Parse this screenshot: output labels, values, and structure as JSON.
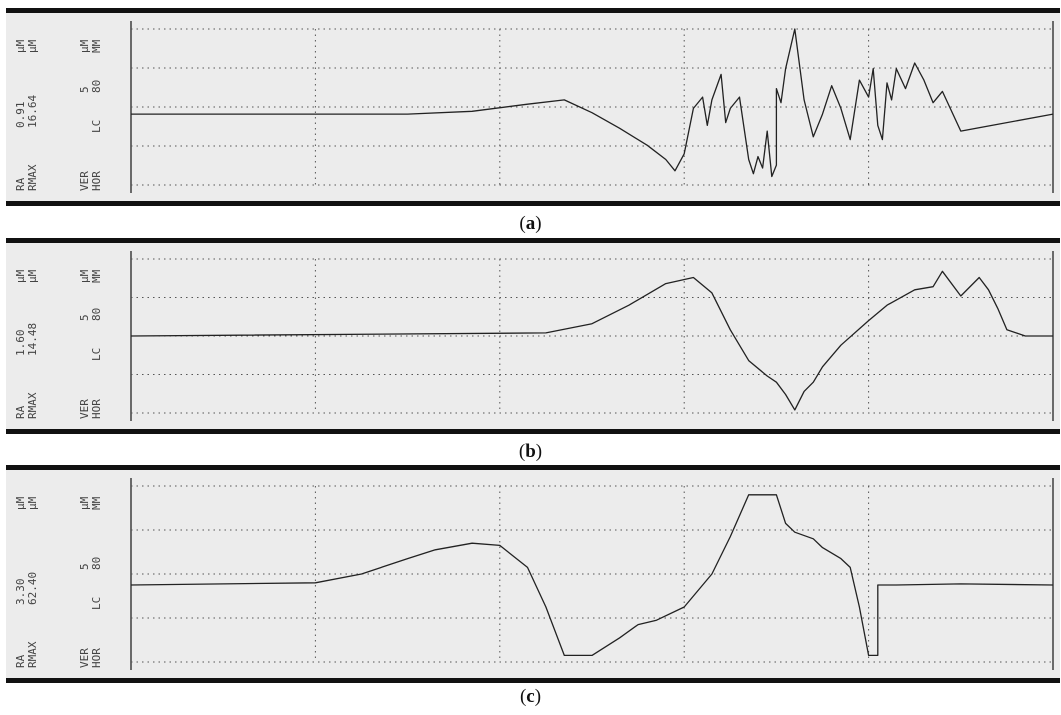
{
  "chart_data": [
    {
      "type": "line",
      "panel": "(a)",
      "labels": {
        "ra": "RA",
        "rmax": "RMAX",
        "ra_value": "0.91",
        "rmax_value": "16.64",
        "unit_a": "μM",
        "unit_b": "μM",
        "ver": "VER",
        "hor": "HOR",
        "ver_value": "5",
        "hor_value": "80",
        "lc": "LC",
        "unit_c": "μM",
        "unit_d": "MM"
      },
      "x": [
        0,
        0.3,
        0.37,
        0.43,
        0.47,
        0.5,
        0.53,
        0.56,
        0.58,
        0.59,
        0.6,
        0.61,
        0.62,
        0.625,
        0.63,
        0.64,
        0.645,
        0.65,
        0.66,
        0.67,
        0.675,
        0.68,
        0.685,
        0.69,
        0.695,
        0.7,
        0.7,
        0.705,
        0.71,
        0.72,
        0.73,
        0.74,
        0.75,
        0.76,
        0.77,
        0.78,
        0.79,
        0.8,
        0.805,
        0.81,
        0.815,
        0.82,
        0.825,
        0.83,
        0.84,
        0.85,
        0.86,
        0.87,
        0.88,
        0.9,
        1
      ],
      "y": [
        0,
        0,
        0.1,
        0.35,
        0.5,
        0.05,
        -0.5,
        -1.1,
        -1.6,
        -2,
        -1.4,
        0.2,
        0.6,
        -0.4,
        0.5,
        1.4,
        -0.3,
        0.2,
        0.6,
        -1.6,
        -2.1,
        -1.5,
        -1.9,
        -0.6,
        -2.2,
        -1.8,
        0.9,
        0.4,
        1.6,
        3,
        0.5,
        -0.8,
        0,
        1,
        0.2,
        -0.9,
        1.2,
        0.6,
        1.6,
        -0.4,
        -0.9,
        1.1,
        0.5,
        1.6,
        0.9,
        1.8,
        1.2,
        0.4,
        0.8,
        -0.6,
        0
      ],
      "x_gridlines": 4,
      "y_gridlines": 4,
      "ylim": [
        -2.5,
        3
      ]
    },
    {
      "type": "line",
      "panel": "(b)",
      "labels": {
        "ra": "RA",
        "rmax": "RMAX",
        "ra_value": "1.60",
        "rmax_value": "14.48",
        "unit_a": "μM",
        "unit_b": "μM",
        "ver": "VER",
        "hor": "HOR",
        "ver_value": "5",
        "hor_value": "80",
        "lc": "LC",
        "unit_c": "μM",
        "unit_d": "MM"
      },
      "x": [
        0,
        0.45,
        0.5,
        0.54,
        0.58,
        0.61,
        0.63,
        0.65,
        0.67,
        0.69,
        0.7,
        0.71,
        0.72,
        0.73,
        0.74,
        0.75,
        0.77,
        0.8,
        0.82,
        0.85,
        0.87,
        0.88,
        0.9,
        0.92,
        0.93,
        0.94,
        0.95,
        0.97,
        1
      ],
      "y": [
        0,
        0.1,
        0.4,
        1,
        1.7,
        1.9,
        1.4,
        0.2,
        -0.8,
        -1.3,
        -1.5,
        -1.9,
        -2.4,
        -1.8,
        -1.5,
        -1,
        -0.3,
        0.5,
        1,
        1.5,
        1.6,
        2.1,
        1.3,
        1.9,
        1.5,
        0.9,
        0.2,
        0,
        0
      ],
      "x_gridlines": 4,
      "y_gridlines": 4,
      "ylim": [
        -2.5,
        2.5
      ]
    },
    {
      "type": "line",
      "panel": "(c)",
      "labels": {
        "ra": "RA",
        "rmax": "RMAX",
        "ra_value": "3.30",
        "rmax_value": "62.40",
        "unit_a": "μM",
        "unit_b": "μM",
        "ver": "VER",
        "hor": "HOR",
        "ver_value": "5",
        "hor_value": "80",
        "lc": "LC",
        "unit_c": "μM",
        "unit_d": "MM"
      },
      "x": [
        0,
        0.2,
        0.25,
        0.3,
        0.33,
        0.37,
        0.4,
        0.43,
        0.45,
        0.47,
        0.5,
        0.53,
        0.55,
        0.57,
        0.6,
        0.63,
        0.65,
        0.67,
        0.7,
        0.71,
        0.72,
        0.74,
        0.75,
        0.77,
        0.78,
        0.79,
        0.8,
        0.81,
        0.81,
        0.83,
        0.83,
        0.9,
        1
      ],
      "y": [
        0,
        0.1,
        0.5,
        1.2,
        1.6,
        1.9,
        1.8,
        0.8,
        -1,
        -3.2,
        -3.2,
        -2.4,
        -1.8,
        -1.6,
        -1,
        0.5,
        2.2,
        4.1,
        4.1,
        2.8,
        2.4,
        2.1,
        1.7,
        1.2,
        0.8,
        -1,
        -3.2,
        -3.2,
        0,
        0,
        0,
        0.05,
        0
      ],
      "x_gridlines": 4,
      "y_gridlines": 4,
      "ylim": [
        -3.5,
        4.5
      ]
    }
  ],
  "captions": {
    "a": "a",
    "b": "b",
    "c": "c"
  }
}
